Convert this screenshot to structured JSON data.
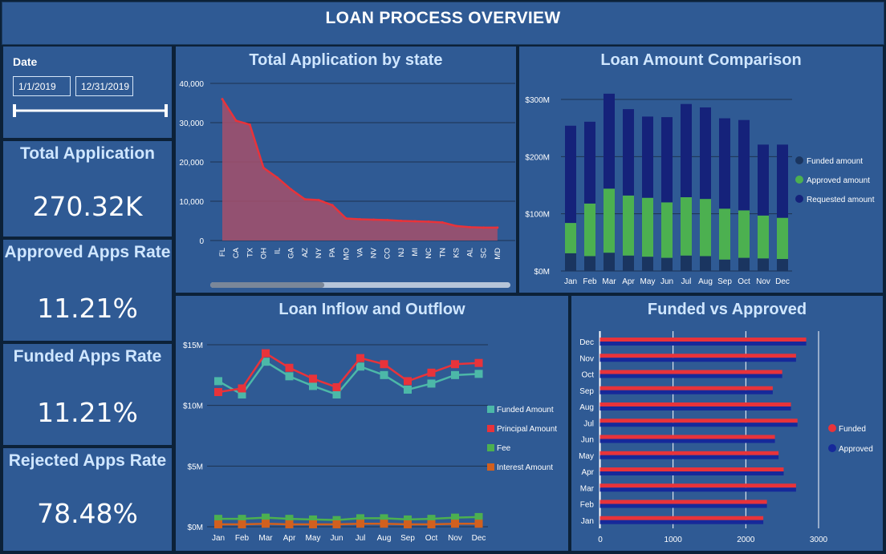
{
  "header": {
    "title": "LOAN PROCESS OVERVIEW"
  },
  "date_filter": {
    "label": "Date",
    "start": "1/1/2019",
    "end": "12/31/2019"
  },
  "kpis": [
    {
      "label": "Total Application",
      "value": "270.32K"
    },
    {
      "label": "Approved Apps Rate",
      "value": "11.21%"
    },
    {
      "label": "Funded Apps Rate",
      "value": "11.21%"
    },
    {
      "label": "Rejected Apps Rate",
      "value": "78.48%"
    }
  ],
  "colors": {
    "background": "#0c2138",
    "panel": "#2f5a94",
    "title_text": "#cfe6ff",
    "red_line": "#e8333a",
    "area_fill": "#a4506b",
    "funded": "#1a3560",
    "approved": "#4cb050",
    "requested": "#15227a",
    "teal": "#4cb8a8",
    "fee_green": "#4cb050",
    "interest_orange": "#d2601e",
    "approved_blue": "#16299a"
  },
  "chart_data": [
    {
      "type": "area",
      "title": "Total Application by state",
      "categories": [
        "FL",
        "CA",
        "TX",
        "OH",
        "IL",
        "GA",
        "AZ",
        "NY",
        "PA",
        "MO",
        "VA",
        "NV",
        "CO",
        "NJ",
        "MI",
        "NC",
        "TN",
        "KS",
        "AL",
        "SC",
        "MD"
      ],
      "values": [
        36000,
        30500,
        29500,
        18500,
        16000,
        13000,
        10500,
        10300,
        9000,
        5600,
        5400,
        5300,
        5200,
        5000,
        4900,
        4800,
        4600,
        3700,
        3400,
        3300,
        3300
      ],
      "yticks": [
        "0",
        "10,000",
        "20,000",
        "30,000",
        "40,000"
      ],
      "ylim": [
        0,
        40000
      ],
      "grid": true,
      "scrollbar": true
    },
    {
      "type": "bar",
      "stacked": true,
      "title": "Loan Amount Comparison",
      "categories": [
        "Jan",
        "Feb",
        "Mar",
        "Apr",
        "May",
        "Jun",
        "Jul",
        "Aug",
        "Sep",
        "Oct",
        "Nov",
        "Dec"
      ],
      "series": [
        {
          "name": "Funded amount",
          "values": [
            31,
            26,
            32,
            27,
            25,
            23,
            27,
            26,
            20,
            23,
            22,
            21
          ]
        },
        {
          "name": "Approved amount",
          "values": [
            53,
            92,
            112,
            105,
            103,
            97,
            102,
            100,
            89,
            83,
            75,
            72
          ]
        },
        {
          "name": "Requested amount",
          "values": [
            170,
            143,
            166,
            151,
            142,
            149,
            163,
            160,
            158,
            158,
            124,
            128
          ]
        }
      ],
      "units": "$M",
      "yticks": [
        "$0M",
        "$100M",
        "$200M",
        "$300M"
      ],
      "ylim": [
        0,
        300
      ],
      "legend": "right"
    },
    {
      "type": "line",
      "title": "Loan Inflow and Outflow",
      "categories": [
        "Jan",
        "Feb",
        "Mar",
        "Apr",
        "May",
        "Jun",
        "Jul",
        "Aug",
        "Sep",
        "Oct",
        "Nov",
        "Dec"
      ],
      "series": [
        {
          "name": "Funded Amount",
          "values": [
            12.0,
            10.9,
            13.6,
            12.4,
            11.6,
            10.9,
            13.2,
            12.5,
            11.3,
            11.8,
            12.5,
            12.6
          ]
        },
        {
          "name": "Principal Amount",
          "values": [
            11.1,
            11.4,
            14.3,
            13.1,
            12.2,
            11.5,
            13.9,
            13.4,
            12.0,
            12.7,
            13.4,
            13.5
          ]
        },
        {
          "name": "Fee",
          "values": [
            0.65,
            0.65,
            0.75,
            0.65,
            0.6,
            0.55,
            0.7,
            0.7,
            0.6,
            0.65,
            0.75,
            0.8
          ]
        },
        {
          "name": "Interest Amount",
          "values": [
            0.2,
            0.2,
            0.25,
            0.2,
            0.2,
            0.2,
            0.25,
            0.25,
            0.2,
            0.2,
            0.25,
            0.25
          ]
        }
      ],
      "units": "$M",
      "yticks": [
        "$0M",
        "$5M",
        "$10M",
        "$15M"
      ],
      "ylim": [
        0,
        15
      ],
      "legend": "right"
    },
    {
      "type": "bar",
      "orientation": "horizontal",
      "title": "Funded vs Approved",
      "categories": [
        "Dec",
        "Nov",
        "Oct",
        "Sep",
        "Aug",
        "Jul",
        "Jun",
        "May",
        "Apr",
        "Mar",
        "Feb",
        "Jan"
      ],
      "series": [
        {
          "name": "Funded",
          "values": [
            2830,
            2690,
            2500,
            2370,
            2620,
            2710,
            2400,
            2450,
            2520,
            2690,
            2290,
            2240
          ]
        },
        {
          "name": "Approved",
          "values": [
            2830,
            2690,
            2500,
            2370,
            2620,
            2710,
            2400,
            2450,
            2520,
            2690,
            2290,
            2240
          ]
        }
      ],
      "xticks": [
        "0",
        "1000",
        "2000",
        "3000"
      ],
      "xlim": [
        0,
        3000
      ],
      "legend": "right"
    }
  ]
}
